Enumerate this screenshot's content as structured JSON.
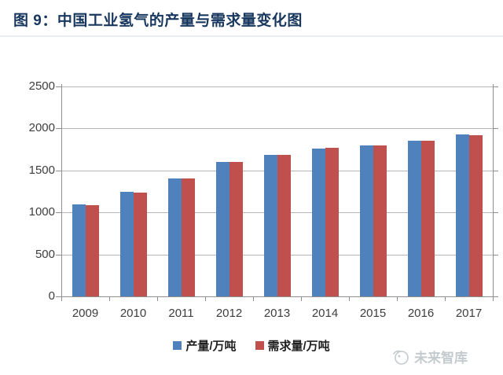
{
  "header": {
    "title": "图 9：中国工业氢气的产量与需求量变化图"
  },
  "watermark": {
    "text": "未来智库"
  },
  "colors": {
    "title": "#17375e",
    "production_blue": "#4f81bd",
    "demand_red": "#c0504d",
    "gridline": "#b6b6b6",
    "axis": "#8f8f8f",
    "axis_label": "#3d3d3d",
    "watermark_gray": "#c3cbce"
  },
  "chart_data": {
    "type": "bar",
    "title": "中国工业氢气的产量与需求量变化图",
    "categories": [
      "2009",
      "2010",
      "2011",
      "2012",
      "2013",
      "2014",
      "2015",
      "2016",
      "2017"
    ],
    "series": [
      {
        "name": "产量/万吨",
        "color": "#4f81bd",
        "values": [
          1100,
          1245,
          1400,
          1600,
          1685,
          1760,
          1800,
          1850,
          1930
        ]
      },
      {
        "name": "需求量/万吨",
        "color": "#c0504d",
        "values": [
          1085,
          1240,
          1405,
          1600,
          1685,
          1765,
          1800,
          1855,
          1915
        ]
      }
    ],
    "xlabel": "",
    "ylabel": "",
    "ylim": [
      0,
      2500
    ],
    "yticks": [
      0,
      500,
      1000,
      1500,
      2000,
      2500
    ],
    "grid": true,
    "legend_position": "bottom"
  }
}
